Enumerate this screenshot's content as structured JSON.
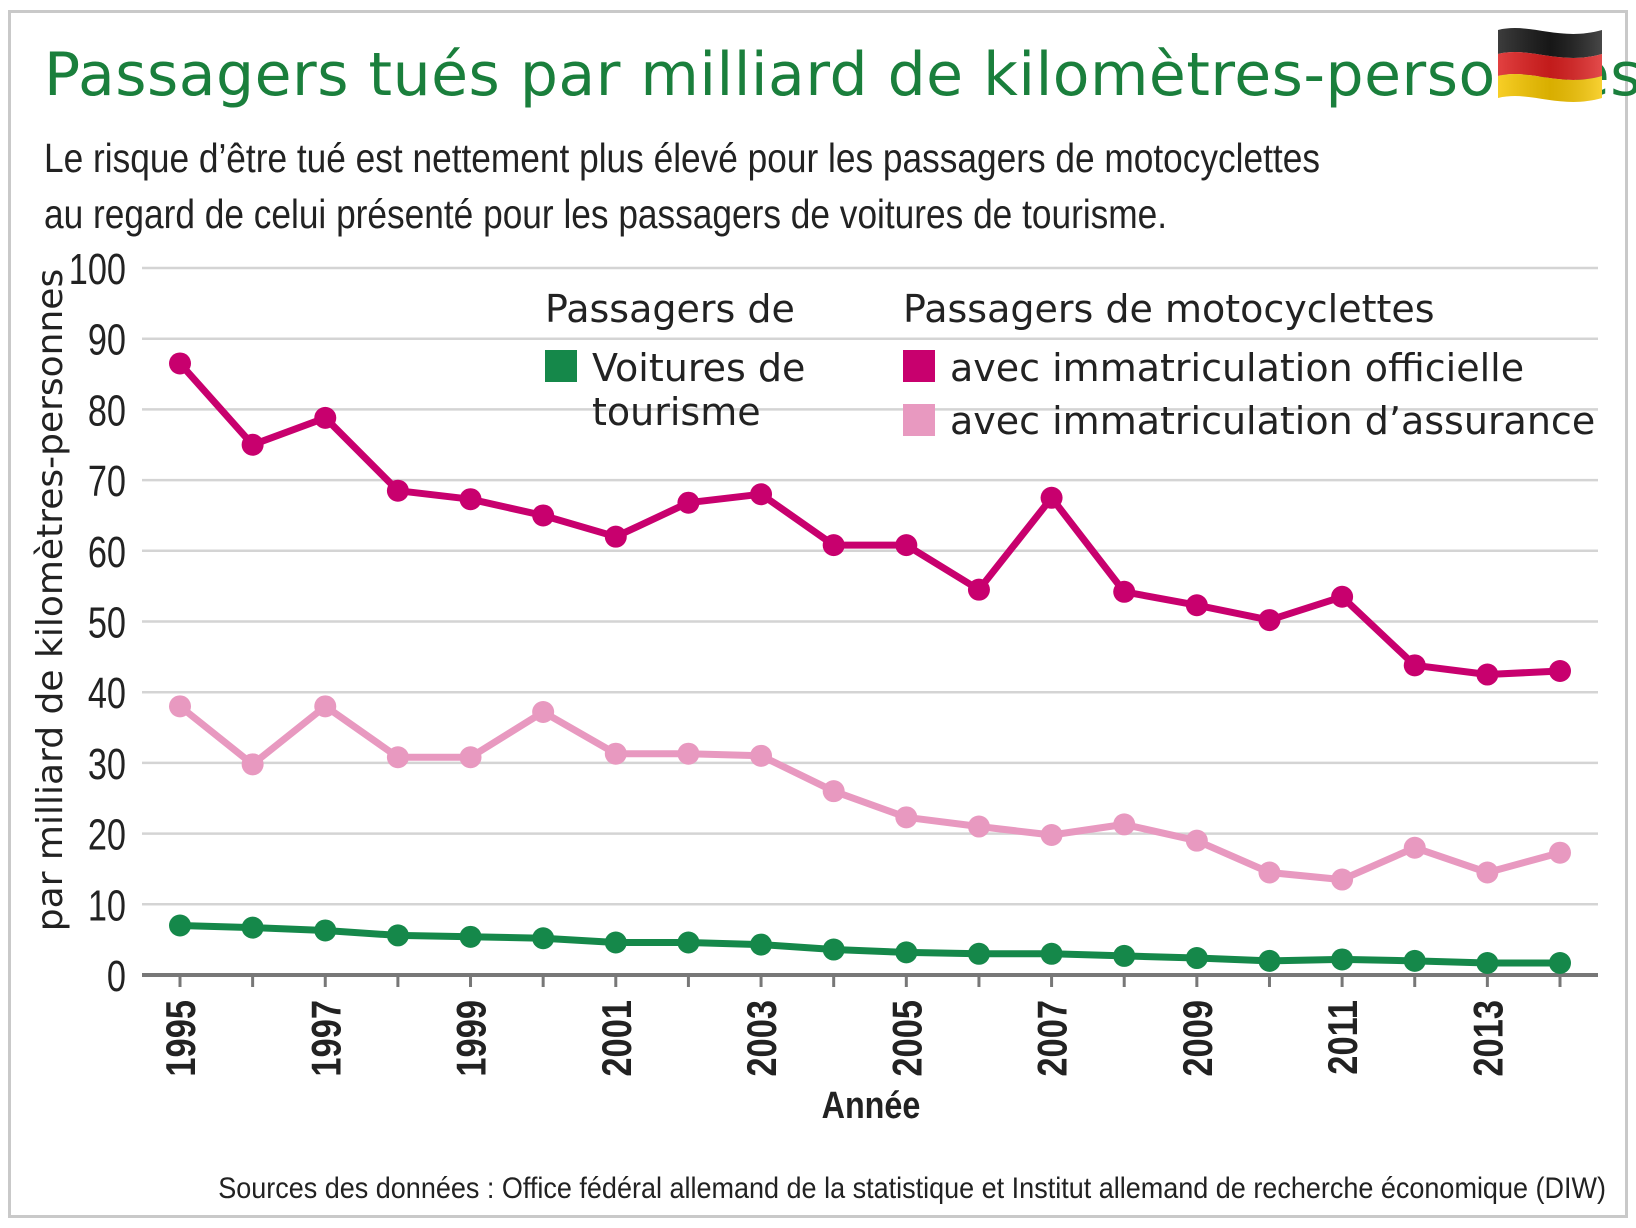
{
  "header": {
    "title": "Passagers tués par milliard de kilomètres-personnes",
    "subtitle": "Le risque d’être tué est nettement plus élevé pour les passagers de motocyclettes au regard de celui présenté pour les passagers de voitures de tourisme.",
    "flag_icon": "germany-flag-icon"
  },
  "footer": {
    "source": "Sources des données : Office fédéral allemand de la statistique et Institut allemand de recherche économique (DIW)"
  },
  "chart_data": {
    "type": "line",
    "title": "Passagers tués par milliard de kilomètres-personnes",
    "xlabel": "Année",
    "ylabel": "par milliard de kilomètres-personnes",
    "ylim": [
      0,
      100
    ],
    "yticks": [
      0,
      10,
      20,
      30,
      40,
      50,
      60,
      70,
      80,
      90,
      100
    ],
    "xtick_labels": [
      "1995",
      "1997",
      "1999",
      "2001",
      "2003",
      "2005",
      "2007",
      "2009",
      "2011",
      "2013"
    ],
    "x": [
      1995,
      1996,
      1997,
      1998,
      1999,
      2000,
      2001,
      2002,
      2003,
      2004,
      2005,
      2006,
      2007,
      2008,
      2009,
      2010,
      2011,
      2012,
      2013,
      2014
    ],
    "grid": true,
    "legend": {
      "placement": "top",
      "group1_heading": "Passagers de",
      "group2_heading": "Passagers de motocyclettes",
      "cars_label_line1": "Voitures de",
      "cars_label_line2": "tourisme",
      "official_label": "avec immatriculation officielle",
      "insurance_label": "avec immatriculation d’assurance"
    },
    "series": [
      {
        "key": "official",
        "color": "#c8006e",
        "values": [
          86.5,
          75,
          78.8,
          68.5,
          67.3,
          65,
          62,
          66.8,
          68,
          60.8,
          60.8,
          54.5,
          67.5,
          54.2,
          52.3,
          50.2,
          53.5,
          43.8,
          42.5,
          43
        ]
      },
      {
        "key": "insurance",
        "color": "#e899c0",
        "values": [
          38,
          29.8,
          38,
          30.8,
          30.8,
          37.2,
          31.3,
          31.3,
          31,
          26,
          22.3,
          21,
          19.8,
          21.3,
          19,
          14.5,
          13.5,
          18,
          14.5,
          17.3
        ]
      },
      {
        "key": "cars",
        "color": "#15884a",
        "values": [
          7,
          6.7,
          6.3,
          5.6,
          5.4,
          5.2,
          4.6,
          4.6,
          4.3,
          3.6,
          3.2,
          3,
          3,
          2.7,
          2.4,
          2,
          2.2,
          2,
          1.7,
          1.7
        ]
      }
    ]
  }
}
